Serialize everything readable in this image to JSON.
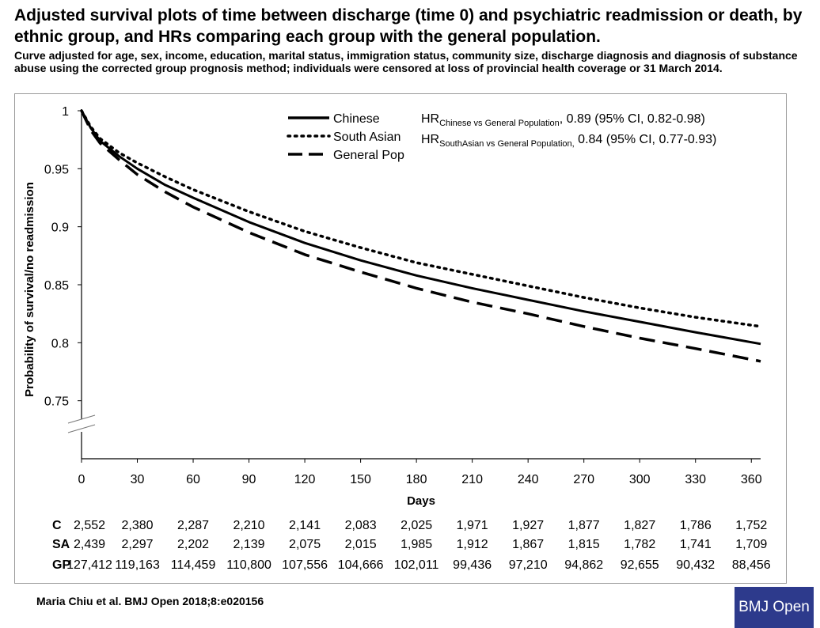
{
  "title": "Adjusted survival plots of time between discharge (time 0) and psychiatric readmission or death, by ethnic group, and HRs comparing each group with the general population.",
  "subtitle": "Curve adjusted for age, sex, income, education, marital status, immigration status, community size, discharge diagnosis and diagnosis of substance abuse using the corrected group prognosis method; individuals were censored at loss of provincial health coverage or 31 March 2014.",
  "citation": "Maria Chiu et al. BMJ Open 2018;8:e020156",
  "logo_text": "BMJ Open",
  "chart_data": {
    "type": "line",
    "xlabel": "Days",
    "ylabel": "Probability of survival/no readmission",
    "xlim": [
      0,
      365
    ],
    "ylim": [
      0.7,
      1.0
    ],
    "axis_break": true,
    "x_ticks": [
      0,
      30,
      60,
      90,
      120,
      150,
      180,
      210,
      240,
      270,
      300,
      330,
      360
    ],
    "y_ticks": [
      0.75,
      0.8,
      0.85,
      0.9,
      0.95,
      1
    ],
    "y_tick_labels": [
      "0.75",
      "0.8",
      "0.85",
      "0.9",
      "0.95",
      "1"
    ],
    "x": [
      0,
      5,
      10,
      20,
      30,
      45,
      60,
      90,
      120,
      150,
      180,
      210,
      240,
      270,
      300,
      330,
      365
    ],
    "series": [
      {
        "name": "Chinese",
        "style": "solid",
        "values": [
          1.0,
          0.985,
          0.974,
          0.961,
          0.95,
          0.936,
          0.925,
          0.904,
          0.886,
          0.871,
          0.858,
          0.847,
          0.837,
          0.827,
          0.818,
          0.809,
          0.799
        ]
      },
      {
        "name": "South Asian",
        "style": "dotted",
        "values": [
          1.0,
          0.986,
          0.976,
          0.964,
          0.955,
          0.943,
          0.932,
          0.913,
          0.896,
          0.882,
          0.869,
          0.859,
          0.849,
          0.839,
          0.83,
          0.822,
          0.814
        ]
      },
      {
        "name": "General Pop",
        "style": "dashed",
        "values": [
          1.0,
          0.983,
          0.972,
          0.958,
          0.945,
          0.93,
          0.917,
          0.895,
          0.876,
          0.861,
          0.847,
          0.835,
          0.825,
          0.814,
          0.804,
          0.795,
          0.784
        ]
      }
    ],
    "legend_position": "top-left",
    "hr_annotations": [
      {
        "prefix": "HR",
        "subscript": "Chinese vs General Population",
        "text": ", 0.89 (95% CI, 0.82-0.98)"
      },
      {
        "prefix": "HR",
        "subscript": "SouthAsian vs General Population,",
        "text": " 0.84 (95% CI, 0.77-0.93)"
      }
    ],
    "risk_table": {
      "rows": [
        {
          "label": "C",
          "values": [
            "2,552",
            "2,380",
            "2,287",
            "2,210",
            "2,141",
            "2,083",
            "2,025",
            "1,971",
            "1,927",
            "1,877",
            "1,827",
            "1,786",
            "1,752"
          ]
        },
        {
          "label": "SA",
          "values": [
            "2,439",
            "2,297",
            "2,202",
            "2,139",
            "2,075",
            "2,015",
            "1,985",
            "1,912",
            "1,867",
            "1,815",
            "1,782",
            "1,741",
            "1,709"
          ]
        },
        {
          "label": "GP",
          "values": [
            "127,412",
            "119,163",
            "114,459",
            "110,800",
            "107,556",
            "104,666",
            "102,011",
            "99,436",
            "97,210",
            "94,862",
            "92,655",
            "90,432",
            "88,456"
          ]
        }
      ]
    }
  }
}
